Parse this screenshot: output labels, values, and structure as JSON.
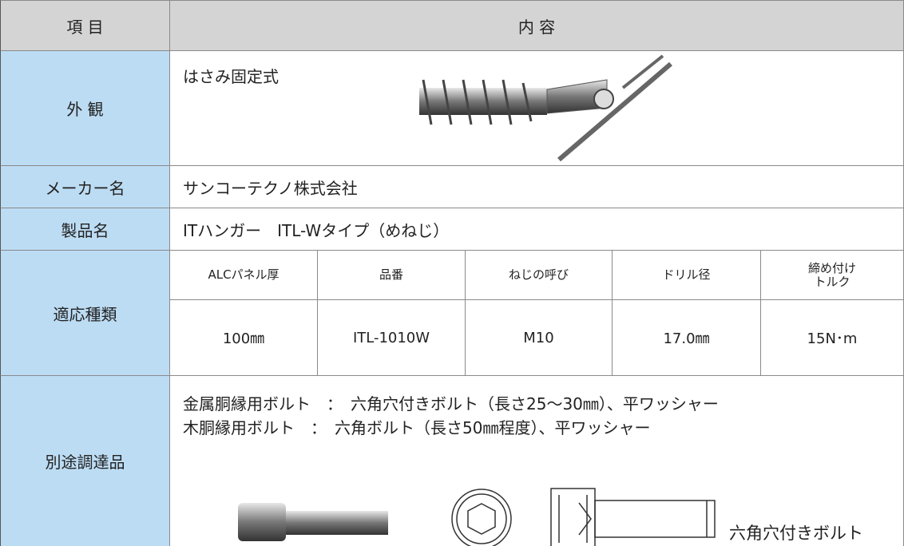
{
  "table": {
    "header": [
      "項 目",
      "内 容"
    ],
    "appearance": {
      "label": "外 観",
      "text": "はさみ固定式"
    },
    "maker": {
      "label": "メーカー名",
      "text": "サンコーテクノ株式会社"
    },
    "product": {
      "label": "製品名",
      "text": "ITハンガー　ITL-Wタイプ（めねじ）"
    },
    "types": {
      "label": "適応種類",
      "columns": [
        "ALCパネル厚",
        "品番",
        "ねじの呼び",
        "ドリル径",
        "締め付け\nトルク"
      ],
      "row": [
        "100㎜",
        "ITL-1010W",
        "M10",
        "17.0㎜",
        "15N･m"
      ]
    },
    "extras": {
      "label": "別途調達品",
      "lines": [
        "金属胴縁用ボルト　：　六角穴付きボルト（長さ25～30㎜）、平ワッシャー",
        "木胴縁用ボルト　：　六角ボルト（長さ50㎜程度）、平ワッシャー"
      ],
      "figure_caption": "六角穴付きボルト"
    }
  }
}
